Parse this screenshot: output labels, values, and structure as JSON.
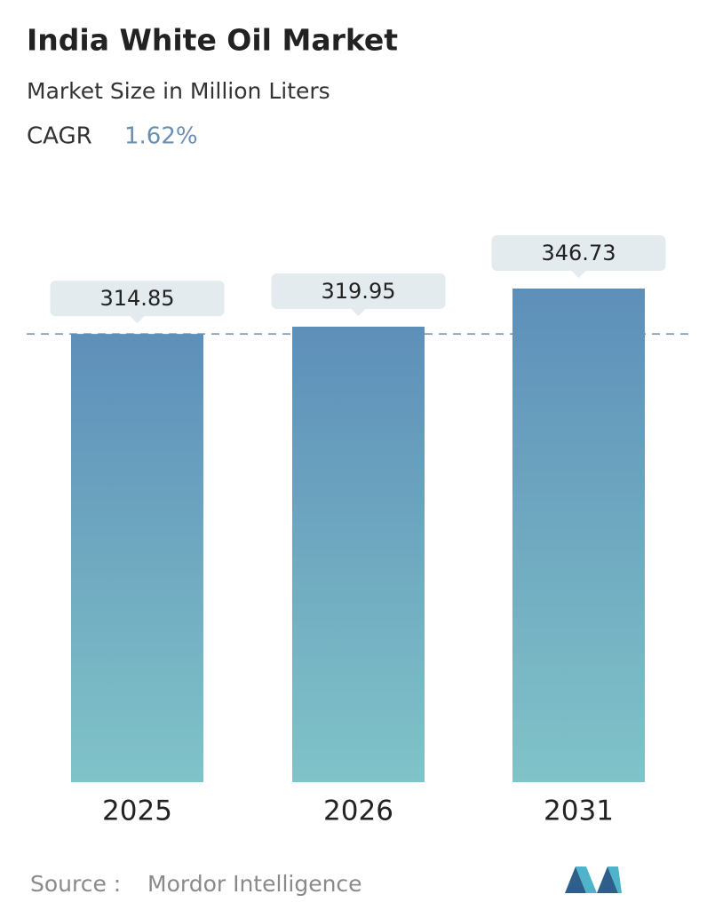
{
  "chart_data": {
    "type": "bar",
    "title": "India White Oil Market",
    "subtitle": "Market Size in Million Liters",
    "cagr_label": "CAGR",
    "cagr_value": "1.62%",
    "categories": [
      "2025",
      "2026",
      "2031"
    ],
    "values": [
      314.85,
      319.95,
      346.73
    ],
    "color_top": "#5e8fb9",
    "color_bottom": "#80c3c8",
    "source_label": "Source :",
    "source": "Mordor Intelligence"
  }
}
